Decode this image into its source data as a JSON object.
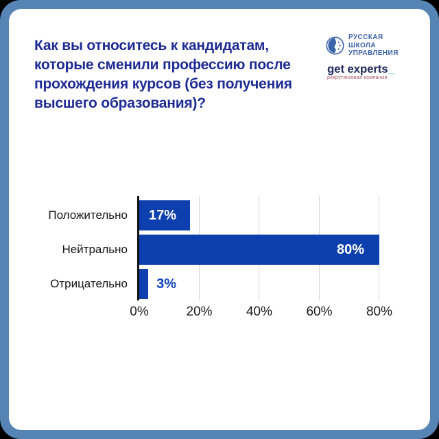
{
  "frame": {
    "border_color": "#5685b5",
    "outside_color": "#000000",
    "background": "#ffffff"
  },
  "header": {
    "title": "Как вы относитесь к кандидатам, которые сменили профессию после прохождения курсов (без получения высшего образования)?",
    "title_color": "#1e2b96"
  },
  "logos": {
    "rshu": {
      "lines": [
        "РУССКАЯ",
        "ШКОЛА",
        "УПРАВЛЕНИЯ"
      ],
      "color": "#3c64a9",
      "icon": "globe-face-icon"
    },
    "get_experts": {
      "name": "get experts",
      "underscore": "_",
      "underscore_color": "#35c4c8",
      "color": "#232c5f",
      "subtitle": "рекрутинговая компания",
      "subtitle_color": "#a85565"
    }
  },
  "chart_data": {
    "type": "bar",
    "orientation": "horizontal",
    "title": "",
    "categories": [
      "Положительно",
      "Нейтрально",
      "Отрицательно"
    ],
    "values": [
      17,
      80,
      3
    ],
    "value_labels": [
      "17%",
      "80%",
      "3%"
    ],
    "label_positions": [
      "inside-left",
      "inside-right",
      "outside"
    ],
    "x_ticks": [
      "0%",
      "20%",
      "40%",
      "60%",
      "80%"
    ],
    "x_tick_values": [
      0,
      20,
      40,
      60,
      80
    ],
    "xlim": [
      0,
      80
    ],
    "grid": true,
    "legend": false,
    "bar_color": "#0d40ae",
    "value_label_color_inside": "#ffffff",
    "value_label_color_outside": "#1245bd",
    "gridline_color": "#d6d6d6",
    "axis_line_color": "#111111",
    "category_label_color": "#141414",
    "tick_label_color": "#1b1b1b"
  }
}
